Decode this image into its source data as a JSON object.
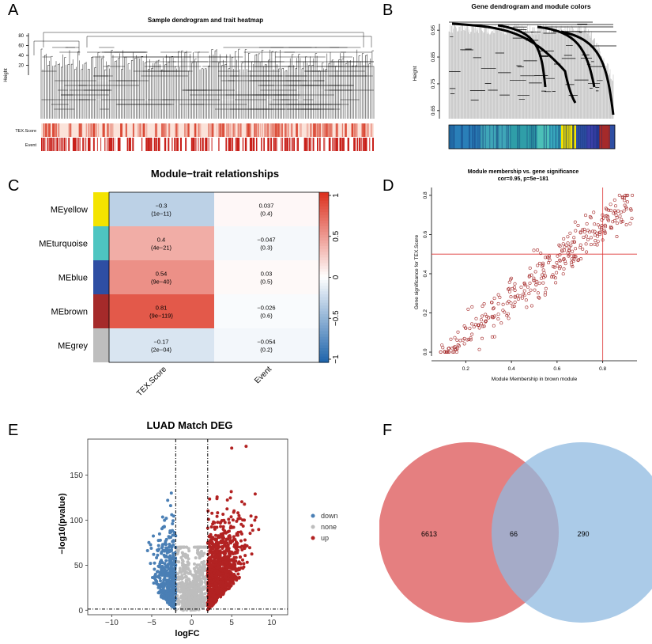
{
  "panels": {
    "A": "A",
    "B": "B",
    "C": "C",
    "D": "D",
    "E": "E",
    "F": "F"
  },
  "chart_data": [
    {
      "id": "A",
      "type": "dendrogram_heatmap",
      "title": "Sample dendrogram and trait heatmap",
      "ylabel": "Height",
      "yticks": [
        20,
        40,
        60,
        80
      ],
      "ylim": [
        0,
        85
      ],
      "trait_rows": [
        "TEX.Score",
        "Event"
      ]
    },
    {
      "id": "B",
      "type": "dendrogram_colorbar",
      "title": "Gene dendrogram and module colors",
      "ylabel": "Height",
      "yticks": [
        0.65,
        0.75,
        0.85,
        0.95
      ],
      "ylim": [
        0.62,
        0.98
      ],
      "module_order": [
        "turquoise",
        "yellow",
        "blue",
        "brown",
        "blue"
      ]
    },
    {
      "id": "C",
      "type": "heatmap",
      "title": "Module−trait relationships",
      "rows": [
        "MEyellow",
        "MEturquoise",
        "MEblue",
        "MEbrown",
        "MEgrey"
      ],
      "row_colors": [
        "#f4e400",
        "#4ec5c1",
        "#2e4ea3",
        "#a52a2a",
        "#bebebe"
      ],
      "columns": [
        "TEX.Score",
        "Event"
      ],
      "values": [
        [
          -0.3,
          0.037
        ],
        [
          0.4,
          -0.047
        ],
        [
          0.54,
          0.03
        ],
        [
          0.81,
          -0.026
        ],
        [
          -0.17,
          -0.054
        ]
      ],
      "cell_text": [
        [
          "−0.3",
          "(1e−11)",
          "0.037",
          "(0.4)"
        ],
        [
          "0.4",
          "(4e−21)",
          "−0.047",
          "(0.3)"
        ],
        [
          "0.54",
          "(9e−40)",
          "0.03",
          "(0.5)"
        ],
        [
          "0.81",
          "(9e−119)",
          "−0.026",
          "(0.6)"
        ],
        [
          "−0.17",
          "(2e−04)",
          "−0.054",
          "(0.2)"
        ]
      ],
      "legend_ticks": [
        "1",
        "0.5",
        "0",
        "−0.5",
        "−1"
      ],
      "range": [
        -1,
        1
      ]
    },
    {
      "id": "D",
      "type": "scatter",
      "title": "Module membership vs. gene significance",
      "subtitle": "cor=0.95, p=5e−181",
      "xlabel": "Module Membership in brown module",
      "ylabel": "Gene significance for TEX.Score",
      "xticks": [
        "0.2",
        "0.4",
        "0.6",
        "0.8"
      ],
      "yticks": [
        "0.0",
        "0.2",
        "0.4",
        "0.6",
        "0.8"
      ],
      "xlim": [
        0.05,
        0.95
      ],
      "ylim": [
        -0.02,
        0.84
      ],
      "threshold_x": 0.8,
      "threshold_y": 0.5,
      "n_points": 330,
      "correlation": 0.95
    },
    {
      "id": "E",
      "type": "scatter",
      "title": "LUAD Match DEG",
      "xlabel": "logFC",
      "ylabel": "−log10(pvalue)",
      "xticks": [
        "−10",
        "−5",
        "0",
        "5",
        "10"
      ],
      "yticks": [
        "0",
        "50",
        "100",
        "150"
      ],
      "xlim": [
        -13,
        12
      ],
      "ylim": [
        -5,
        190
      ],
      "thresholds_x": [
        -2,
        2
      ],
      "threshold_y": 1.3,
      "legend": [
        {
          "name": "down",
          "color": "#4a7fb5"
        },
        {
          "name": "none",
          "color": "#bdbdbd"
        },
        {
          "name": "up",
          "color": "#b22222"
        }
      ]
    },
    {
      "id": "F",
      "type": "venn",
      "sets": [
        {
          "label": "left",
          "color": "#e0696a",
          "only": "6613"
        },
        {
          "label": "right",
          "color": "#8fb9e0",
          "only": "290"
        }
      ],
      "intersection": "66"
    }
  ]
}
